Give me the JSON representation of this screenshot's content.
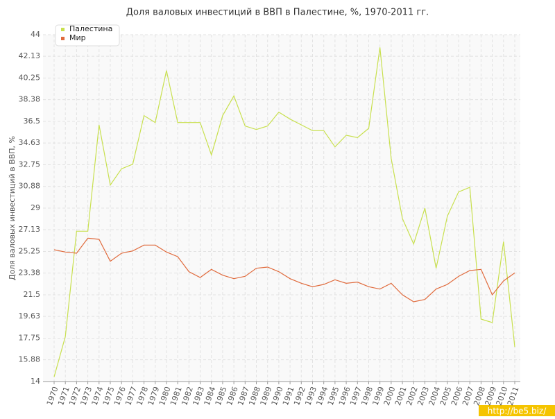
{
  "chart_data": {
    "type": "line",
    "title": "Доля валовых инвестиций в ВВП в Палестине, %, 1970-2011 гг.",
    "y_label": "Доля валовых инвестиций в ВВП, %",
    "watermark": "http://be5.biz/",
    "categories": [
      "1970",
      "1971",
      "1972",
      "1973",
      "1974",
      "1975",
      "1976",
      "1977",
      "1978",
      "1979",
      "1980",
      "1981",
      "1982",
      "1983",
      "1984",
      "1985",
      "1986",
      "1987",
      "1988",
      "1989",
      "1990",
      "1991",
      "1992",
      "1993",
      "1994",
      "1995",
      "1996",
      "1997",
      "1998",
      "1999",
      "2000",
      "2001",
      "2002",
      "2003",
      "2004",
      "2005",
      "2006",
      "2007",
      "2008",
      "2009",
      "2010",
      "2011"
    ],
    "series": [
      {
        "name": "Палестина",
        "color": "#c8e04e",
        "values": [
          14.4,
          17.9,
          27.0,
          27.0,
          36.2,
          31.0,
          32.4,
          32.8,
          37.0,
          36.4,
          40.9,
          36.4,
          36.4,
          36.4,
          33.6,
          37.0,
          38.7,
          36.1,
          35.8,
          36.1,
          37.3,
          36.7,
          36.2,
          35.7,
          35.7,
          34.3,
          35.3,
          35.1,
          35.9,
          42.9,
          33.3,
          28.1,
          25.9,
          29.0,
          23.8,
          28.3,
          30.4,
          30.8,
          19.4,
          19.1,
          26.1,
          17.0
        ]
      },
      {
        "name": "Мир",
        "color": "#e06a3c",
        "values": [
          25.4,
          25.2,
          25.1,
          26.4,
          26.3,
          24.4,
          25.1,
          25.3,
          25.8,
          25.8,
          25.2,
          24.8,
          23.5,
          23.0,
          23.7,
          23.2,
          22.9,
          23.1,
          23.8,
          23.9,
          23.5,
          22.9,
          22.5,
          22.2,
          22.4,
          22.8,
          22.5,
          22.6,
          22.2,
          22.0,
          22.5,
          21.5,
          20.9,
          21.1,
          22.0,
          22.4,
          23.1,
          23.6,
          23.7,
          21.5,
          22.7,
          23.4
        ]
      }
    ],
    "ylim": [
      14,
      44
    ],
    "yticks": [
      14,
      15.88,
      17.75,
      19.63,
      21.5,
      23.38,
      25.25,
      27.13,
      29,
      30.88,
      32.75,
      34.63,
      36.5,
      38.38,
      40.25,
      42.13,
      44
    ],
    "grid": true,
    "legend": "top-left"
  }
}
